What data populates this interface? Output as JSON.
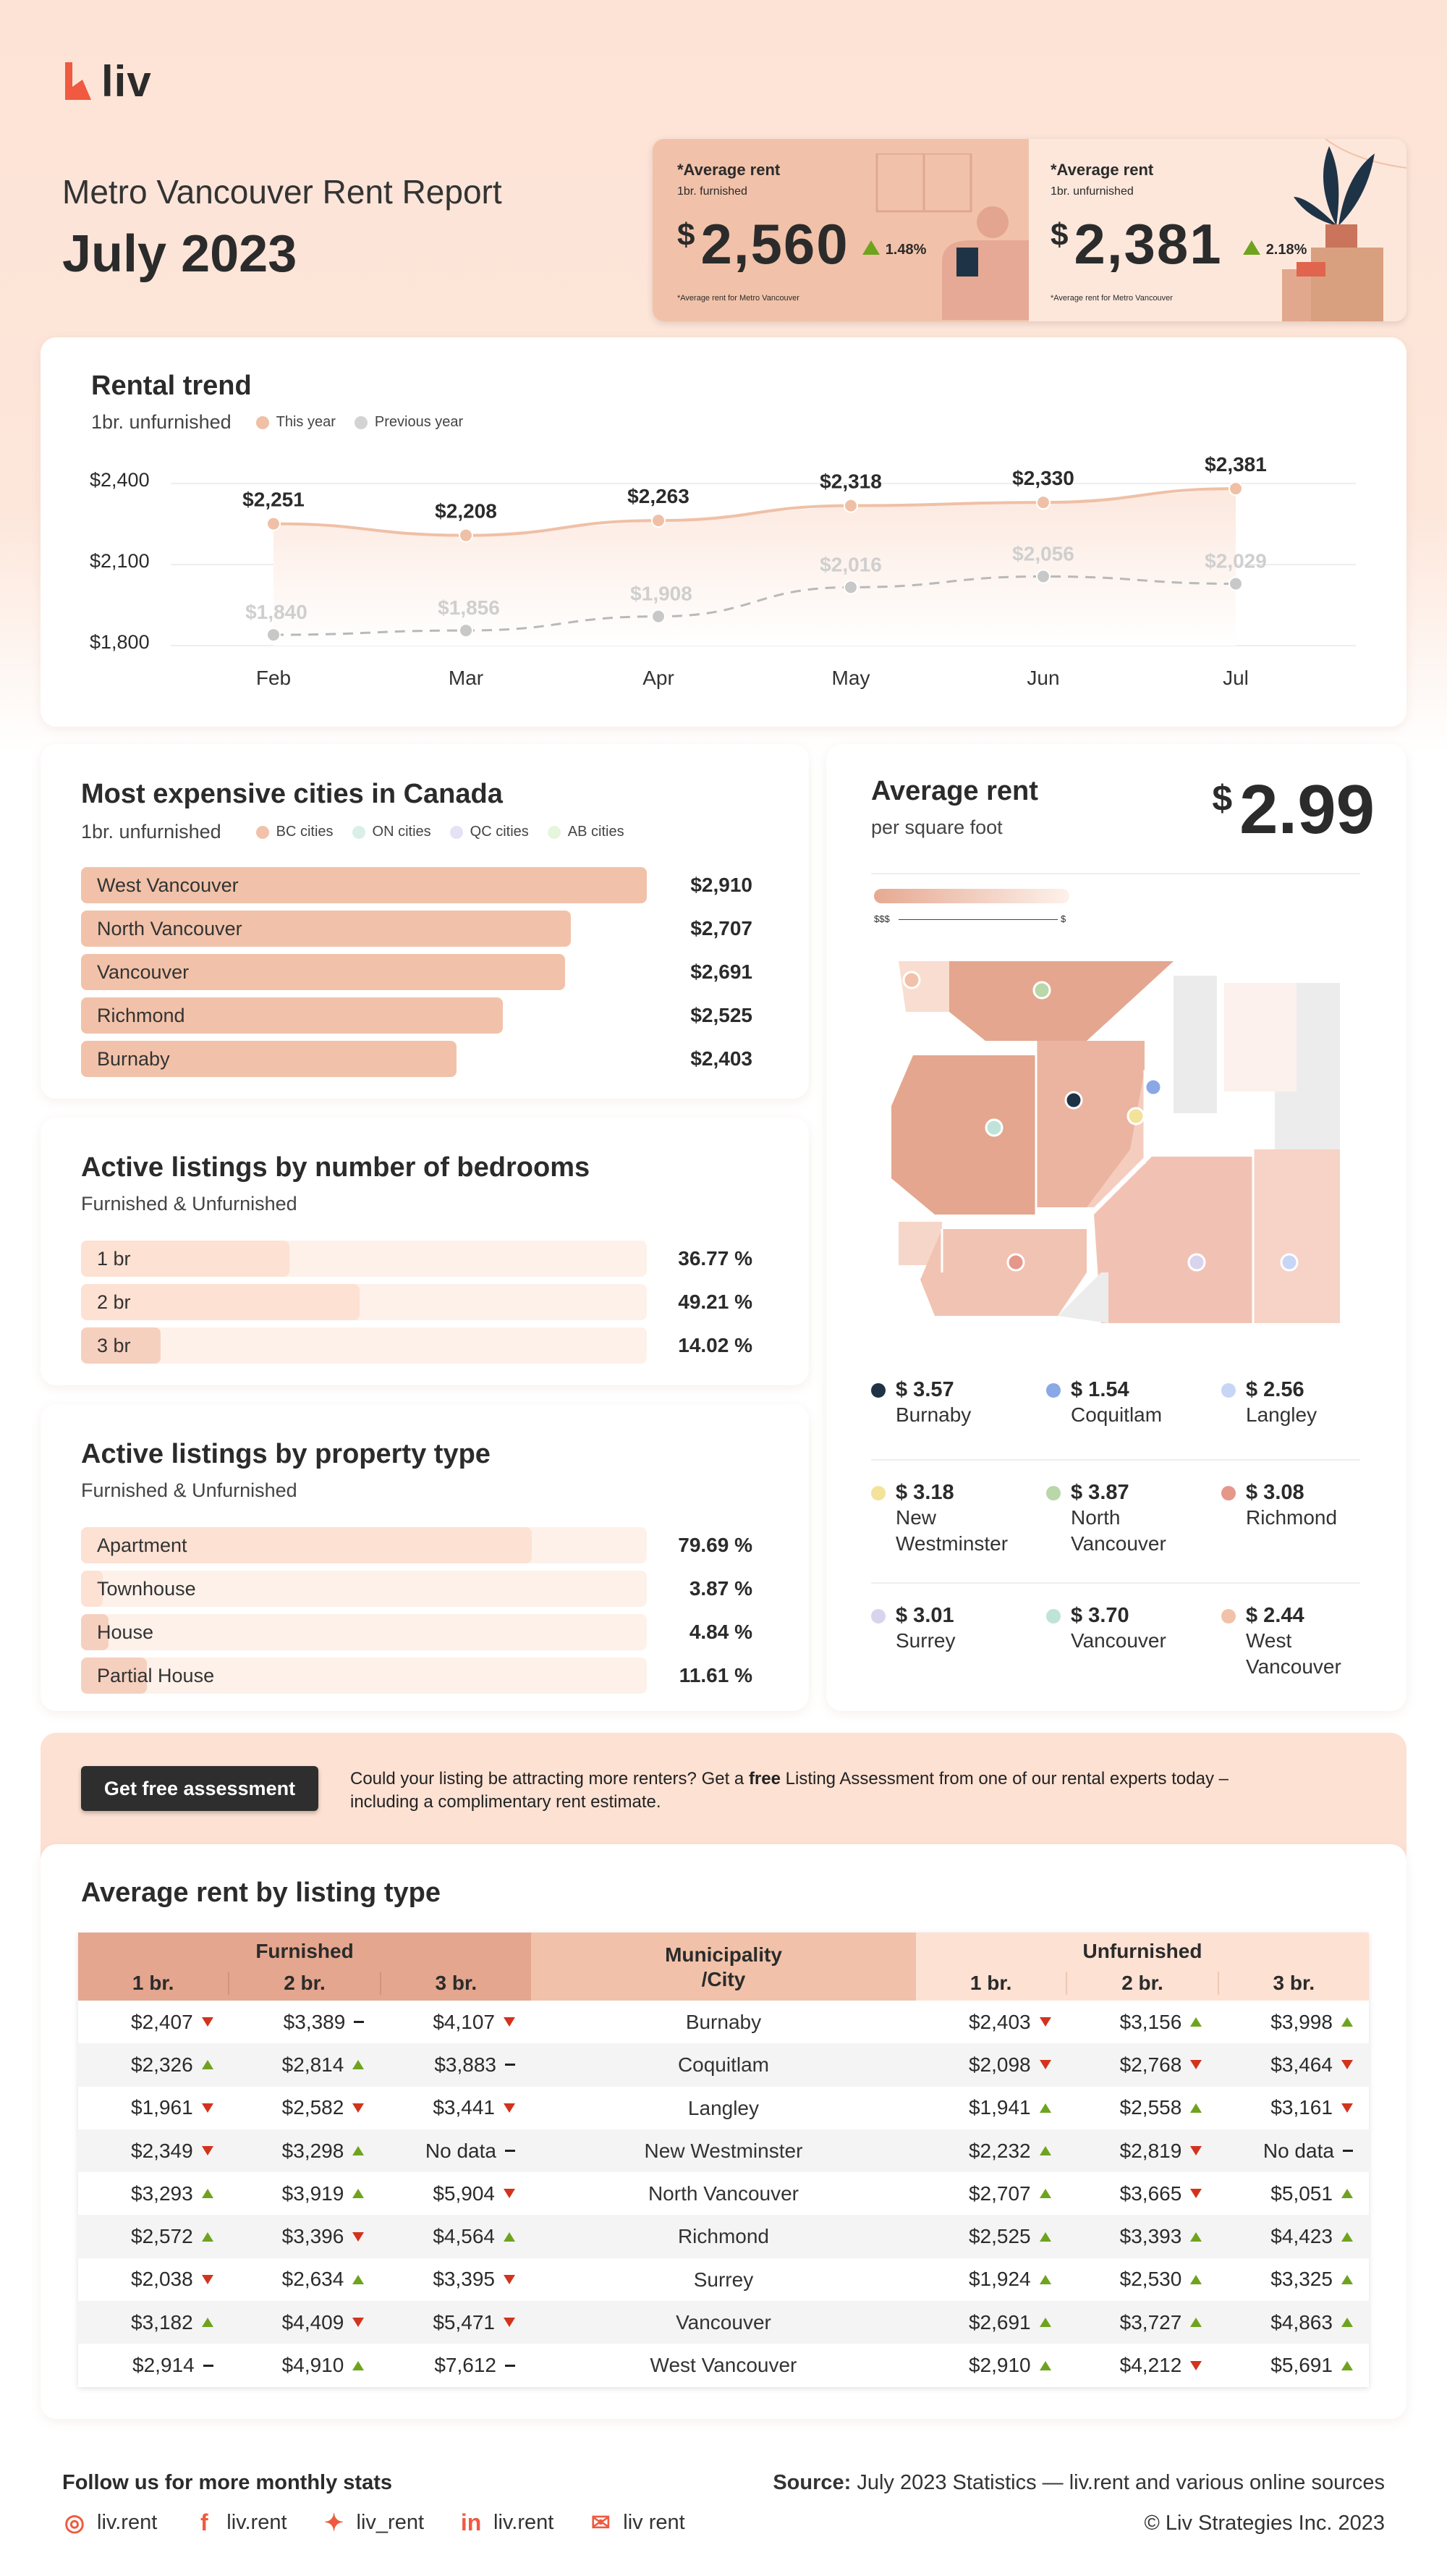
{
  "brand": {
    "name": "liv",
    "color": "#ef5a40"
  },
  "header": {
    "subtitle": "Metro Vancouver Rent Report",
    "title": "July 2023"
  },
  "kpis": [
    {
      "label": "*Average rent",
      "sub": "1br. furnished",
      "currency": "$",
      "value": "2,560",
      "change": "1.48%",
      "note": "*Average rent for Metro Vancouver"
    },
    {
      "label": "*Average rent",
      "sub": "1br. unfurnished",
      "currency": "$",
      "value": "2,381",
      "change": "2.18%",
      "note": "*Average rent for Metro Vancouver"
    }
  ],
  "trend": {
    "title": "Rental trend",
    "subtitle": "1br. unfurnished",
    "legend": [
      "This year",
      "Previous year"
    ],
    "y_ticks": [
      "$2,400",
      "$2,100",
      "$1,800"
    ],
    "chart_data": {
      "type": "line",
      "categories": [
        "Feb",
        "Mar",
        "Apr",
        "May",
        "Jun",
        "Jul"
      ],
      "ylim": [
        1800,
        2400
      ],
      "series": [
        {
          "name": "This year",
          "values": [
            2251,
            2208,
            2263,
            2318,
            2330,
            2381
          ],
          "labels": [
            "$2,251",
            "$2,208",
            "$2,263",
            "$2,318",
            "$2,330",
            "$2,381"
          ],
          "color": "#efc0a6"
        },
        {
          "name": "Previous year",
          "values": [
            1840,
            1856,
            1908,
            2016,
            2056,
            2029
          ],
          "labels": [
            "$1,840",
            "$1,856",
            "$1,908",
            "$2,016",
            "$2,056",
            "$2,029"
          ],
          "color": "#c8c8c8"
        }
      ]
    }
  },
  "cities": {
    "title": "Most expensive cities in Canada",
    "subtitle": "1br. unfurnished",
    "legend": [
      {
        "label": "BC cities",
        "color": "#f1c2a9"
      },
      {
        "label": "ON cities",
        "color": "#d9efe8"
      },
      {
        "label": "QC cities",
        "color": "#e4e2f6"
      },
      {
        "label": "AB cities",
        "color": "#e6f6dc"
      }
    ],
    "rows": [
      {
        "label": "West Vancouver",
        "value": "$2,910",
        "num": 2910
      },
      {
        "label": "North Vancouver",
        "value": "$2,707",
        "num": 2707
      },
      {
        "label": "Vancouver",
        "value": "$2,691",
        "num": 2691
      },
      {
        "label": "Richmond",
        "value": "$2,525",
        "num": 2525
      },
      {
        "label": "Burnaby",
        "value": "$2,403",
        "num": 2403
      }
    ]
  },
  "bedrooms": {
    "title": "Active listings by number of bedrooms",
    "subtitle": "Furnished & Unfurnished",
    "rows": [
      {
        "label": "1 br",
        "value": "36.77 %",
        "pct": 36.77
      },
      {
        "label": "2 br",
        "value": "49.21 %",
        "pct": 49.21
      },
      {
        "label": "3 br",
        "value": "14.02 %",
        "pct": 14.02
      }
    ]
  },
  "property": {
    "title": "Active listings by property type",
    "subtitle": "Furnished & Unfurnished",
    "rows": [
      {
        "label": "Apartment",
        "value": "79.69 %",
        "pct": 79.69
      },
      {
        "label": "Townhouse",
        "value": "3.87 %",
        "pct": 3.87
      },
      {
        "label": "House",
        "value": "4.84 %",
        "pct": 4.84
      },
      {
        "label": "Partial House",
        "value": "11.61 %",
        "pct": 11.61
      }
    ]
  },
  "sqft": {
    "title": "Average rent",
    "subtitle": "per square foot",
    "currency": "$",
    "value": "2.99",
    "scale_left": "$$$",
    "scale_right": "$",
    "items": [
      {
        "value": "$ 3.57",
        "name": "Burnaby",
        "color": "#1f3347"
      },
      {
        "value": "$ 1.54",
        "name": "Coquitlam",
        "color": "#8aa8e6"
      },
      {
        "value": "$ 2.56",
        "name": "Langley",
        "color": "#c7d6f5"
      },
      {
        "value": "$ 3.18",
        "name": "New Westminster",
        "color": "#f3e29a"
      },
      {
        "value": "$ 3.87",
        "name": "North Vancouver",
        "color": "#b9d7a8"
      },
      {
        "value": "$ 3.08",
        "name": "Richmond",
        "color": "#e5978a"
      },
      {
        "value": "$ 3.01",
        "name": "Surrey",
        "color": "#d9d3ee"
      },
      {
        "value": "$ 3.70",
        "name": "Vancouver",
        "color": "#bfe3d9"
      },
      {
        "value": "$ 2.44",
        "name": "West Vancouver",
        "color": "#f1c2a9"
      }
    ]
  },
  "cta": {
    "button": "Get free assessment",
    "text_before": "Could your listing be attracting more renters? Get a ",
    "text_bold": "free",
    "text_after": " Listing Assessment from one of our rental experts today – including a complimentary rent estimate."
  },
  "table": {
    "title": "Average rent by listing type",
    "furnished_label": "Furnished",
    "unfurnished_label": "Unfurnished",
    "municipality_label_1": "Municipality",
    "municipality_label_2": "/City",
    "cols": [
      "1 br.",
      "2 br.",
      "3 br."
    ],
    "rows": [
      {
        "city": "Burnaby",
        "f": [
          [
            "$2,407",
            "down"
          ],
          [
            "$3,389",
            "flat"
          ],
          [
            "$4,107",
            "down"
          ]
        ],
        "u": [
          [
            "$2,403",
            "down"
          ],
          [
            "$3,156",
            "up"
          ],
          [
            "$3,998",
            "up"
          ]
        ]
      },
      {
        "city": "Coquitlam",
        "f": [
          [
            "$2,326",
            "up"
          ],
          [
            "$2,814",
            "up"
          ],
          [
            "$3,883",
            "flat"
          ]
        ],
        "u": [
          [
            "$2,098",
            "down"
          ],
          [
            "$2,768",
            "down"
          ],
          [
            "$3,464",
            "down"
          ]
        ]
      },
      {
        "city": "Langley",
        "f": [
          [
            "$1,961",
            "down"
          ],
          [
            "$2,582",
            "down"
          ],
          [
            "$3,441",
            "down"
          ]
        ],
        "u": [
          [
            "$1,941",
            "up"
          ],
          [
            "$2,558",
            "up"
          ],
          [
            "$3,161",
            "down"
          ]
        ]
      },
      {
        "city": "New Westminster",
        "f": [
          [
            "$2,349",
            "down"
          ],
          [
            "$3,298",
            "up"
          ],
          [
            "No data",
            "flat"
          ]
        ],
        "u": [
          [
            "$2,232",
            "up"
          ],
          [
            "$2,819",
            "down"
          ],
          [
            "No data",
            "flat"
          ]
        ]
      },
      {
        "city": "North Vancouver",
        "f": [
          [
            "$3,293",
            "up"
          ],
          [
            "$3,919",
            "up"
          ],
          [
            "$5,904",
            "down"
          ]
        ],
        "u": [
          [
            "$2,707",
            "up"
          ],
          [
            "$3,665",
            "down"
          ],
          [
            "$5,051",
            "up"
          ]
        ]
      },
      {
        "city": "Richmond",
        "f": [
          [
            "$2,572",
            "up"
          ],
          [
            "$3,396",
            "down"
          ],
          [
            "$4,564",
            "up"
          ]
        ],
        "u": [
          [
            "$2,525",
            "up"
          ],
          [
            "$3,393",
            "up"
          ],
          [
            "$4,423",
            "up"
          ]
        ]
      },
      {
        "city": "Surrey",
        "f": [
          [
            "$2,038",
            "down"
          ],
          [
            "$2,634",
            "up"
          ],
          [
            "$3,395",
            "down"
          ]
        ],
        "u": [
          [
            "$1,924",
            "up"
          ],
          [
            "$2,530",
            "up"
          ],
          [
            "$3,325",
            "up"
          ]
        ]
      },
      {
        "city": "Vancouver",
        "f": [
          [
            "$3,182",
            "up"
          ],
          [
            "$4,409",
            "down"
          ],
          [
            "$5,471",
            "down"
          ]
        ],
        "u": [
          [
            "$2,691",
            "up"
          ],
          [
            "$3,727",
            "up"
          ],
          [
            "$4,863",
            "up"
          ]
        ]
      },
      {
        "city": "West Vancouver",
        "f": [
          [
            "$2,914",
            "flat"
          ],
          [
            "$4,910",
            "up"
          ],
          [
            "$7,612",
            "flat"
          ]
        ],
        "u": [
          [
            "$2,910",
            "up"
          ],
          [
            "$4,212",
            "down"
          ],
          [
            "$5,691",
            "up"
          ]
        ]
      }
    ]
  },
  "footer": {
    "follow": "Follow us for more monthly stats",
    "source_label": "Source:",
    "source_text": " July 2023 Statistics — liv.rent and various online sources",
    "copyright": "© Liv Strategies Inc. 2023",
    "socials": [
      {
        "icon": "instagram-icon",
        "handle": "liv.rent"
      },
      {
        "icon": "facebook-icon",
        "handle": "liv.rent"
      },
      {
        "icon": "twitter-icon",
        "handle": "liv_rent"
      },
      {
        "icon": "linkedin-icon",
        "handle": "liv.rent"
      },
      {
        "icon": "wechat-icon",
        "handle": "liv rent"
      }
    ]
  }
}
